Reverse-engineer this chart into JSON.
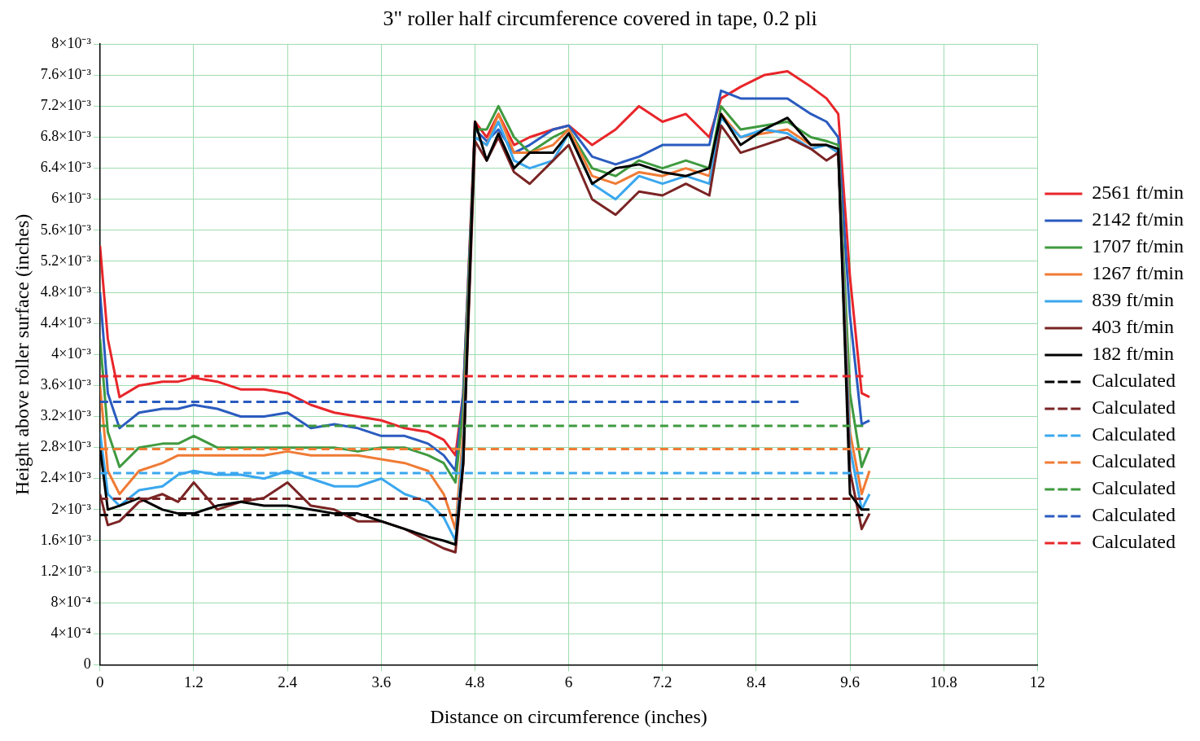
{
  "chart_data": {
    "type": "line",
    "title": "3\" roller half circumference covered in tape, 0.2 pli",
    "xlabel": "Distance on circumference (inches)",
    "ylabel": "Height above roller surface (inches)",
    "x": [
      0,
      0.1,
      0.25,
      0.5,
      0.8,
      1.0,
      1.2,
      1.5,
      1.8,
      2.1,
      2.4,
      2.7,
      3.0,
      3.3,
      3.6,
      3.9,
      4.2,
      4.4,
      4.55,
      4.65,
      4.8,
      4.95,
      5.1,
      5.3,
      5.5,
      5.8,
      6.0,
      6.3,
      6.6,
      6.9,
      7.2,
      7.5,
      7.8,
      7.95,
      8.2,
      8.5,
      8.8,
      9.1,
      9.3,
      9.45,
      9.6,
      9.75,
      9.85
    ],
    "series": [
      {
        "name": "2561 ft/min",
        "color": "#e8262a",
        "values": [
          0.0054,
          0.0042,
          0.00345,
          0.0036,
          0.00365,
          0.00365,
          0.0037,
          0.00365,
          0.00355,
          0.00355,
          0.0035,
          0.00335,
          0.00325,
          0.0032,
          0.00315,
          0.00305,
          0.003,
          0.0029,
          0.0027,
          0.0035,
          0.007,
          0.0068,
          0.0071,
          0.0067,
          0.0068,
          0.0069,
          0.00695,
          0.0067,
          0.0069,
          0.0072,
          0.007,
          0.0071,
          0.0068,
          0.0073,
          0.00745,
          0.0076,
          0.00765,
          0.00745,
          0.0073,
          0.0071,
          0.005,
          0.0035,
          0.00345
        ]
      },
      {
        "name": "2142 ft/min",
        "color": "#2a5bbf",
        "values": [
          0.0048,
          0.0035,
          0.00305,
          0.00325,
          0.0033,
          0.0033,
          0.00335,
          0.0033,
          0.0032,
          0.0032,
          0.00325,
          0.00305,
          0.0031,
          0.00305,
          0.00295,
          0.00295,
          0.00285,
          0.0027,
          0.0025,
          0.0035,
          0.0069,
          0.00675,
          0.0069,
          0.0066,
          0.0067,
          0.0069,
          0.00695,
          0.00655,
          0.00645,
          0.00655,
          0.0067,
          0.0067,
          0.0067,
          0.0074,
          0.0073,
          0.0073,
          0.0073,
          0.0071,
          0.007,
          0.0068,
          0.0045,
          0.0031,
          0.00315
        ]
      },
      {
        "name": "1707 ft/min",
        "color": "#3f9a3f",
        "values": [
          0.0042,
          0.003,
          0.00255,
          0.0028,
          0.00285,
          0.00285,
          0.00295,
          0.0028,
          0.0028,
          0.0028,
          0.0028,
          0.0028,
          0.0028,
          0.00275,
          0.0028,
          0.0028,
          0.0027,
          0.0026,
          0.00235,
          0.0033,
          0.0069,
          0.0069,
          0.0072,
          0.0068,
          0.0066,
          0.0068,
          0.0069,
          0.0064,
          0.0063,
          0.0065,
          0.0064,
          0.0065,
          0.0064,
          0.0072,
          0.0069,
          0.00695,
          0.007,
          0.0068,
          0.00675,
          0.0067,
          0.0035,
          0.00255,
          0.0028
        ]
      },
      {
        "name": "1267 ft/min",
        "color": "#f07b35",
        "values": [
          0.0036,
          0.0025,
          0.0022,
          0.0025,
          0.0026,
          0.0027,
          0.0027,
          0.0027,
          0.0027,
          0.0027,
          0.00275,
          0.0027,
          0.0027,
          0.0027,
          0.00265,
          0.0026,
          0.0025,
          0.0022,
          0.00175,
          0.003,
          0.0068,
          0.0067,
          0.0071,
          0.0066,
          0.0066,
          0.0067,
          0.0069,
          0.0063,
          0.0062,
          0.00635,
          0.0063,
          0.0064,
          0.0063,
          0.0071,
          0.0068,
          0.00685,
          0.0069,
          0.0067,
          0.0067,
          0.0066,
          0.003,
          0.0022,
          0.0025
        ]
      },
      {
        "name": "839 ft/min",
        "color": "#3aa7ee",
        "values": [
          0.003,
          0.0022,
          0.00205,
          0.00225,
          0.0023,
          0.00245,
          0.0025,
          0.00245,
          0.00245,
          0.0024,
          0.0025,
          0.0024,
          0.0023,
          0.0023,
          0.0024,
          0.0022,
          0.0021,
          0.0019,
          0.0016,
          0.0028,
          0.0068,
          0.0067,
          0.007,
          0.0065,
          0.0064,
          0.0065,
          0.00685,
          0.0062,
          0.006,
          0.0063,
          0.0062,
          0.0063,
          0.0062,
          0.00705,
          0.0068,
          0.0069,
          0.00685,
          0.00665,
          0.0067,
          0.0066,
          0.0028,
          0.002,
          0.0022
        ]
      },
      {
        "name": "403 ft/min",
        "color": "#7a2424",
        "values": [
          0.0022,
          0.0018,
          0.00185,
          0.0021,
          0.0022,
          0.0021,
          0.00235,
          0.002,
          0.0021,
          0.00215,
          0.00235,
          0.00205,
          0.002,
          0.00185,
          0.00185,
          0.00175,
          0.0016,
          0.0015,
          0.00145,
          0.0026,
          0.00675,
          0.0065,
          0.0068,
          0.00635,
          0.0062,
          0.0065,
          0.0067,
          0.006,
          0.0058,
          0.0061,
          0.00605,
          0.0062,
          0.00605,
          0.00695,
          0.0066,
          0.0067,
          0.0068,
          0.00665,
          0.0065,
          0.0066,
          0.0025,
          0.00175,
          0.00195
        ]
      },
      {
        "name": "182 ft/min",
        "color": "#000000",
        "values": [
          0.0028,
          0.002,
          0.00205,
          0.00215,
          0.002,
          0.00195,
          0.00195,
          0.00205,
          0.0021,
          0.00205,
          0.00205,
          0.002,
          0.00195,
          0.00195,
          0.00185,
          0.00175,
          0.00165,
          0.0016,
          0.00155,
          0.0026,
          0.007,
          0.0065,
          0.00685,
          0.0064,
          0.0066,
          0.0066,
          0.00685,
          0.0062,
          0.0064,
          0.00645,
          0.00635,
          0.0063,
          0.0064,
          0.0071,
          0.0067,
          0.0069,
          0.00705,
          0.0067,
          0.0067,
          0.00665,
          0.0022,
          0.002,
          0.002
        ]
      },
      {
        "name": "Calculated",
        "color": "#000000",
        "line_style": "dashed",
        "x": [
          0,
          9.77
        ],
        "values": [
          0.00193,
          0.00193
        ]
      },
      {
        "name": "Calculated",
        "color": "#7a2424",
        "line_style": "dashed",
        "x": [
          0,
          9.77
        ],
        "values": [
          0.00214,
          0.00214
        ]
      },
      {
        "name": "Calculated",
        "color": "#3aa7ee",
        "line_style": "dashed",
        "x": [
          0,
          9.77
        ],
        "values": [
          0.00247,
          0.00247
        ]
      },
      {
        "name": "Calculated",
        "color": "#f07b35",
        "line_style": "dashed",
        "x": [
          0,
          9.77
        ],
        "values": [
          0.00278,
          0.00278
        ]
      },
      {
        "name": "Calculated",
        "color": "#3f9a3f",
        "line_style": "dashed",
        "x": [
          0,
          9.77
        ],
        "values": [
          0.00308,
          0.00308
        ]
      },
      {
        "name": "Calculated",
        "color": "#2a5bbf",
        "line_style": "dashed",
        "x": [
          0,
          8.95
        ],
        "values": [
          0.00339,
          0.00339
        ]
      },
      {
        "name": "Calculated",
        "color": "#e8262a",
        "line_style": "dashed",
        "x": [
          0,
          9.77
        ],
        "values": [
          0.00372,
          0.00372
        ]
      }
    ],
    "xlim": [
      0,
      12
    ],
    "xticks": [
      0,
      1.2,
      2.4,
      3.6,
      4.8,
      6,
      7.2,
      8.4,
      9.6,
      10.8,
      12
    ],
    "ylim": [
      0,
      0.008
    ],
    "yticks": [
      0,
      {
        "value": 0.0004,
        "label": "4×10⁻⁴"
      },
      {
        "value": 0.0008,
        "label": "8×10⁻⁴"
      },
      {
        "value": 0.0012,
        "label": "1.2×10⁻³"
      },
      {
        "value": 0.0016,
        "label": "1.6×10⁻³"
      },
      {
        "value": 0.002,
        "label": "2×10⁻³"
      },
      {
        "value": 0.0024,
        "label": "2.4×10⁻³"
      },
      {
        "value": 0.0028,
        "label": "2.8×10⁻³"
      },
      {
        "value": 0.0032,
        "label": "3.2×10⁻³"
      },
      {
        "value": 0.0036,
        "label": "3.6×10⁻³"
      },
      {
        "value": 0.004,
        "label": "4×10⁻³"
      },
      {
        "value": 0.0044,
        "label": "4.4×10⁻³"
      },
      {
        "value": 0.0048,
        "label": "4.8×10⁻³"
      },
      {
        "value": 0.0052,
        "label": "5.2×10⁻³"
      },
      {
        "value": 0.0056,
        "label": "5.6×10⁻³"
      },
      {
        "value": 0.006,
        "label": "6×10⁻³"
      },
      {
        "value": 0.0064,
        "label": "6.4×10⁻³"
      },
      {
        "value": 0.0068,
        "label": "6.8×10⁻³"
      },
      {
        "value": 0.0072,
        "label": "7.2×10⁻³"
      },
      {
        "value": 0.0076,
        "label": "7.6×10⁻³"
      },
      {
        "value": 0.008,
        "label": "8×10⁻³"
      }
    ],
    "grid": true,
    "legend": "right"
  }
}
